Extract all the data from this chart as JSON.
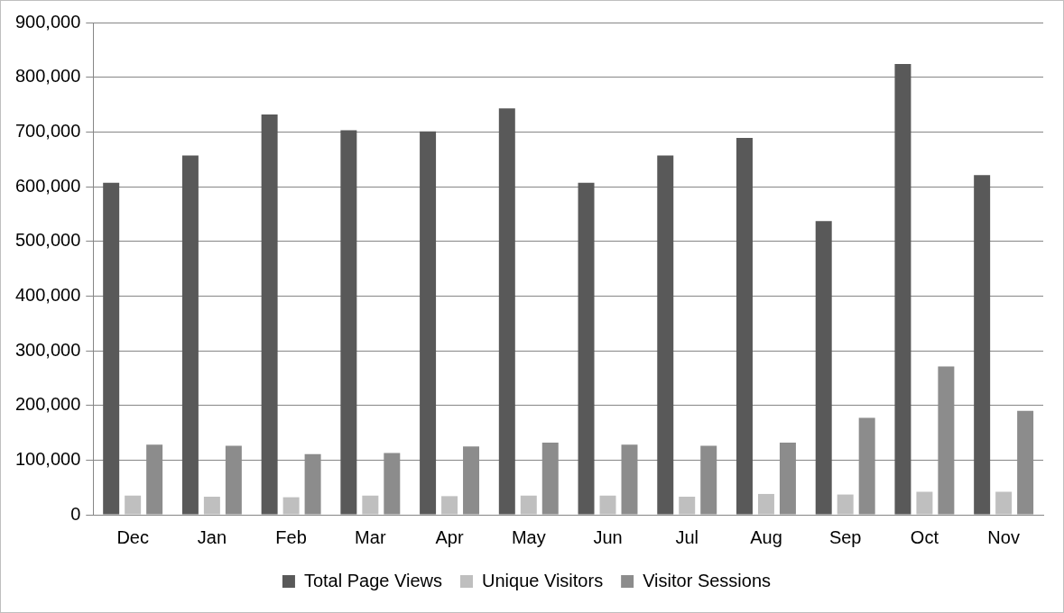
{
  "chart_data": {
    "type": "bar",
    "categories": [
      "Dec",
      "Jan",
      "Feb",
      "Mar",
      "Apr",
      "May",
      "Jun",
      "Jul",
      "Aug",
      "Sep",
      "Oct",
      "Nov"
    ],
    "series": [
      {
        "name": "Total Page Views",
        "color": "#595959",
        "values": [
          607000,
          657000,
          732000,
          703000,
          701000,
          743000,
          607000,
          657000,
          689000,
          537000,
          824000,
          621000
        ]
      },
      {
        "name": "Unique Visitors",
        "color": "#bfbfbf",
        "values": [
          35000,
          33000,
          32000,
          35000,
          34000,
          35000,
          35000,
          33000,
          38000,
          37000,
          42000,
          42000
        ]
      },
      {
        "name": "Visitor Sessions",
        "color": "#8c8c8c",
        "values": [
          128000,
          126000,
          111000,
          113000,
          125000,
          132000,
          128000,
          126000,
          132000,
          177000,
          271000,
          190000
        ]
      }
    ],
    "ylim": [
      0,
      900000
    ],
    "yticks": [
      {
        "value": 0,
        "label": "0"
      },
      {
        "value": 100000,
        "label": "100,000"
      },
      {
        "value": 200000,
        "label": "200,000"
      },
      {
        "value": 300000,
        "label": "300,000"
      },
      {
        "value": 400000,
        "label": "400,000"
      },
      {
        "value": 500000,
        "label": "500,000"
      },
      {
        "value": 600000,
        "label": "600,000"
      },
      {
        "value": 700000,
        "label": "700,000"
      },
      {
        "value": 800000,
        "label": "800,000"
      },
      {
        "value": 900000,
        "label": "900,000"
      }
    ],
    "grid": "y",
    "legend": "bottom"
  }
}
